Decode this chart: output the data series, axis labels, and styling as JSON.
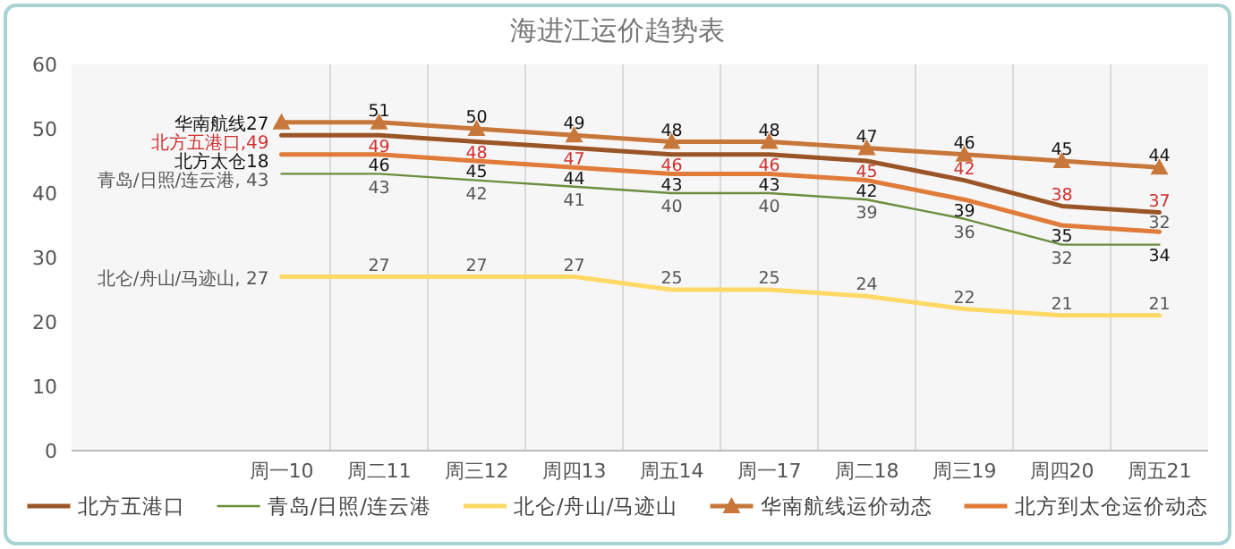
{
  "chart_data": {
    "type": "line",
    "title": "海进江运价趋势表",
    "categories": [
      "周一10",
      "周二11",
      "周三12",
      "周四13",
      "周五14",
      "周一17",
      "周二18",
      "周三19",
      "周四20",
      "周五21"
    ],
    "series": [
      {
        "name": "北方五港口",
        "color": "#9a5527",
        "values": [
          49,
          49,
          48,
          47,
          46,
          46,
          45,
          42,
          38,
          37
        ],
        "value_labels": [
          "北方五港口,49",
          "49",
          "48",
          "47",
          "46",
          "46",
          "45",
          "42",
          "38",
          "37"
        ]
      },
      {
        "name": "青岛/日照/连云港",
        "color": "#6b8e3e",
        "values": [
          43,
          43,
          42,
          41,
          40,
          40,
          39,
          36,
          32,
          32
        ],
        "value_labels": [
          "青岛/日照/连云港, 43",
          "43",
          "42",
          "41",
          "40",
          "40",
          "39",
          "36",
          "32",
          "32"
        ]
      },
      {
        "name": "北仑/舟山/马迹山",
        "color": "#ffd966",
        "values": [
          27,
          27,
          27,
          27,
          25,
          25,
          24,
          22,
          21,
          21
        ],
        "value_labels": [
          "北仑/舟山/马迹山, 27",
          "27",
          "27",
          "27",
          "25",
          "25",
          "24",
          "22",
          "21",
          "21"
        ]
      },
      {
        "name": "华南航线运价动态",
        "color": "#c8773a",
        "marker": "triangle",
        "values": [
          51,
          51,
          50,
          49,
          48,
          48,
          47,
          46,
          45,
          44
        ],
        "value_labels": [
          "华南航线27",
          "51",
          "50",
          "49",
          "48",
          "48",
          "47",
          "46",
          "45",
          "44"
        ]
      },
      {
        "name": "北方到太仓运价动态",
        "color": "#e07b39",
        "values": [
          46,
          46,
          45,
          44,
          43,
          43,
          42,
          39,
          35,
          34
        ],
        "value_labels": [
          "北方太仓18",
          "46",
          "45",
          "44",
          "43",
          "43",
          "42",
          "39",
          "35",
          "34"
        ]
      }
    ],
    "ylim": [
      0,
      60
    ],
    "yticks": [
      0,
      10,
      20,
      30,
      40,
      50,
      60
    ],
    "grid": "x",
    "legend": "bottom",
    "line_style": "solid"
  }
}
